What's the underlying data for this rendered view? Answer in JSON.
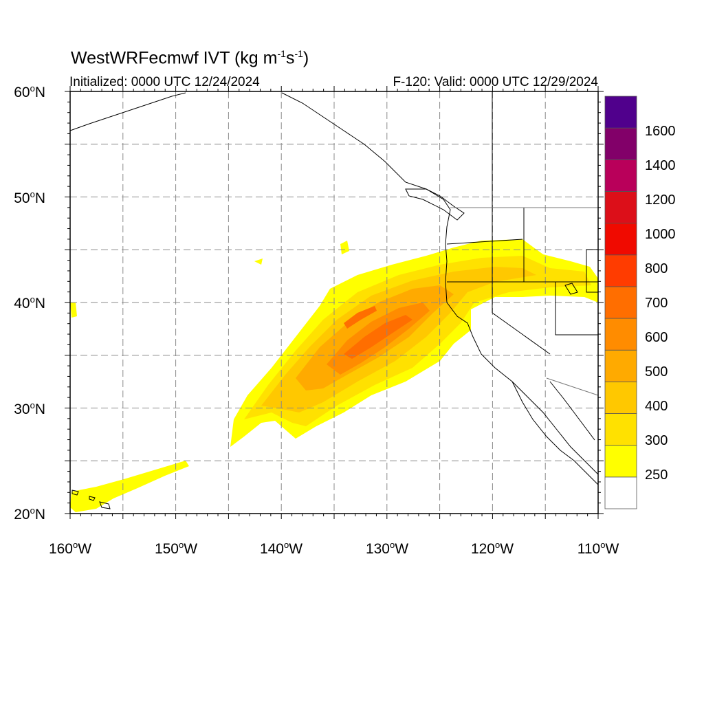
{
  "title_main": "WestWRFecmwf IVT (kg m",
  "title_exp1": "-1",
  "title_mid": "s",
  "title_exp2": "-1",
  "title_end": ")",
  "init_text": "Initialized: 0000 UTC 12/24/2024",
  "valid_text": "F-120: Valid: 0000 UTC 12/29/2024",
  "lat_labels": [
    "60",
    "50",
    "40",
    "30",
    "20"
  ],
  "lat_suffix": "N",
  "lon_labels": [
    "160",
    "150",
    "140",
    "130",
    "120",
    "110"
  ],
  "lon_suffix": "W",
  "deg_symbol": "o",
  "colorbar": {
    "labels": [
      "250",
      "300",
      "400",
      "500",
      "600",
      "700",
      "800",
      "1000",
      "1200",
      "1400",
      "1600"
    ],
    "colors": [
      "#ffffff",
      "#ffff00",
      "#ffe100",
      "#ffc800",
      "#ffaa00",
      "#ff8c00",
      "#ff6e00",
      "#ff3c00",
      "#f00a00",
      "#dc0f19",
      "#b9005a",
      "#820069",
      "#50008c"
    ]
  },
  "map_extent": {
    "lon_min": -160,
    "lon_max": -110,
    "lat_min": 20,
    "lat_max": 60
  }
}
